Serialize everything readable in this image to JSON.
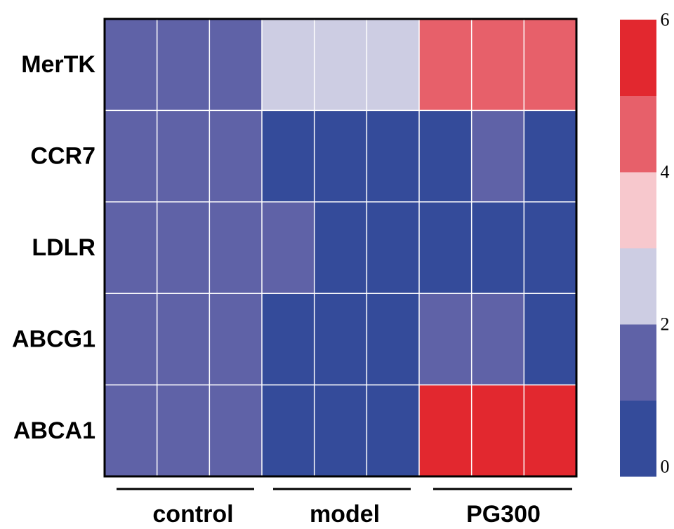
{
  "chart_data": {
    "type": "heatmap",
    "rows": [
      "MerTK",
      "CCR7",
      "LDLR",
      "ABCG1",
      "ABCA1"
    ],
    "groups": [
      {
        "label": "control",
        "columns": 3
      },
      {
        "label": "model",
        "columns": 3
      },
      {
        "label": "PG300",
        "columns": 3
      }
    ],
    "values": [
      [
        1.5,
        1.5,
        1.5,
        2.5,
        2.5,
        2.5,
        4.5,
        4.5,
        4.5
      ],
      [
        1.5,
        1.5,
        1.5,
        0.5,
        0.5,
        0.5,
        0.5,
        1.5,
        0.5
      ],
      [
        1.5,
        1.5,
        1.5,
        1.5,
        0.5,
        0.5,
        0.5,
        0.5,
        0.5
      ],
      [
        1.5,
        1.5,
        1.5,
        0.5,
        0.5,
        0.5,
        1.5,
        1.5,
        0.5
      ],
      [
        1.5,
        1.5,
        1.5,
        0.5,
        0.5,
        0.5,
        5.5,
        5.5,
        5.5
      ]
    ],
    "color_scale": {
      "min": 0,
      "max": 6,
      "ticks": [
        "0",
        "2",
        "4",
        "6"
      ],
      "bins": [
        {
          "from": 0,
          "to": 1,
          "color": "#344b9a"
        },
        {
          "from": 1,
          "to": 2,
          "color": "#5f62a7"
        },
        {
          "from": 2,
          "to": 3,
          "color": "#cdcde3"
        },
        {
          "from": 3,
          "to": 4,
          "color": "#f7c8cd"
        },
        {
          "from": 4,
          "to": 5,
          "color": "#e7606a"
        },
        {
          "from": 5,
          "to": 6,
          "color": "#e2282f"
        }
      ]
    },
    "grid_line_color": "#ffffff",
    "frame_color": "#000000"
  }
}
